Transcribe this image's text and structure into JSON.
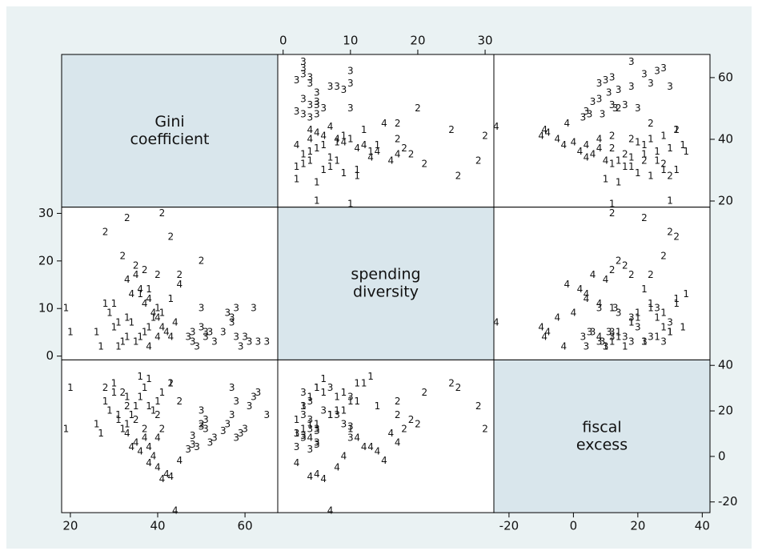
{
  "chart_data": {
    "type": "scatter_matrix",
    "variables": [
      {
        "label": [
          "Gini",
          "coefficient"
        ],
        "lim": [
          18,
          67.5
        ],
        "ticks": [
          20,
          40,
          60
        ]
      },
      {
        "label": [
          "spending",
          "diversity"
        ],
        "lim": [
          -0.8,
          31.3
        ],
        "ticks": [
          0,
          10,
          20,
          30
        ]
      },
      {
        "label": [
          "fiscal",
          "excess"
        ],
        "lim": [
          -24.7,
          42.4
        ],
        "ticks": [
          -20,
          0,
          20,
          40
        ]
      }
    ],
    "observations": {
      "group": [
        "3",
        "3",
        "3",
        "3",
        "3",
        "3",
        "3",
        "3",
        "3",
        "3",
        "3",
        "3",
        "3",
        "3",
        "3",
        "3",
        "3",
        "3",
        "3",
        "3",
        "3",
        "3",
        "1",
        "1",
        "1",
        "1",
        "1",
        "1",
        "1",
        "1",
        "1",
        "1",
        "1",
        "1",
        "1",
        "1",
        "1",
        "1",
        "1",
        "1",
        "1",
        "1",
        "1",
        "1",
        "1",
        "1",
        "4",
        "4",
        "4",
        "4",
        "4",
        "4",
        "4",
        "4",
        "4",
        "4",
        "4",
        "4",
        "4",
        "4",
        "4",
        "2",
        "2",
        "2",
        "2",
        "2",
        "2",
        "2",
        "2",
        "2",
        "2"
      ],
      "gini": [
        65,
        63,
        61,
        60,
        59,
        58,
        57,
        56,
        55,
        53,
        52,
        51,
        51,
        50,
        49,
        48,
        48,
        47,
        50,
        62,
        57,
        58,
        43,
        41,
        40,
        39,
        38,
        37,
        36,
        35,
        34,
        33,
        32,
        31,
        30,
        29,
        28,
        27,
        26,
        19,
        20,
        36,
        33,
        30,
        38,
        31,
        44,
        42,
        41,
        40,
        39,
        38,
        37,
        36,
        35,
        45,
        33,
        34,
        43,
        38,
        40,
        33,
        28,
        32,
        35,
        37,
        40,
        45,
        50,
        41,
        43
      ],
      "spending": [
        3,
        3,
        3,
        4,
        2,
        4,
        7,
        9,
        5,
        3,
        5,
        5,
        4,
        6,
        2,
        5,
        3,
        4,
        10,
        10,
        8,
        10,
        12,
        9,
        10,
        8,
        6,
        5,
        4,
        3,
        7,
        4,
        3,
        2,
        6,
        9,
        11,
        2,
        5,
        10,
        5,
        13,
        8,
        11,
        14,
        7,
        7,
        5,
        6,
        8,
        9,
        12,
        11,
        14,
        17,
        15,
        16,
        13,
        4,
        2,
        4,
        29,
        26,
        21,
        19,
        18,
        17,
        17,
        20,
        30,
        25
      ],
      "fiscal": [
        18,
        28,
        22,
        12,
        10,
        24,
        30,
        14,
        11,
        8,
        6,
        12,
        16,
        20,
        4,
        5,
        9,
        3,
        13,
        26,
        18,
        8,
        32,
        28,
        24,
        20,
        34,
        30,
        26,
        22,
        18,
        14,
        12,
        16,
        28,
        20,
        24,
        10,
        14,
        12,
        30,
        35,
        26,
        32,
        22,
        18,
        -24,
        -8,
        -10,
        -5,
        0,
        4,
        8,
        2,
        6,
        -2,
        10,
        4,
        -9,
        -3,
        8,
        22,
        30,
        28,
        16,
        12,
        18,
        24,
        14,
        12,
        32
      ]
    }
  }
}
